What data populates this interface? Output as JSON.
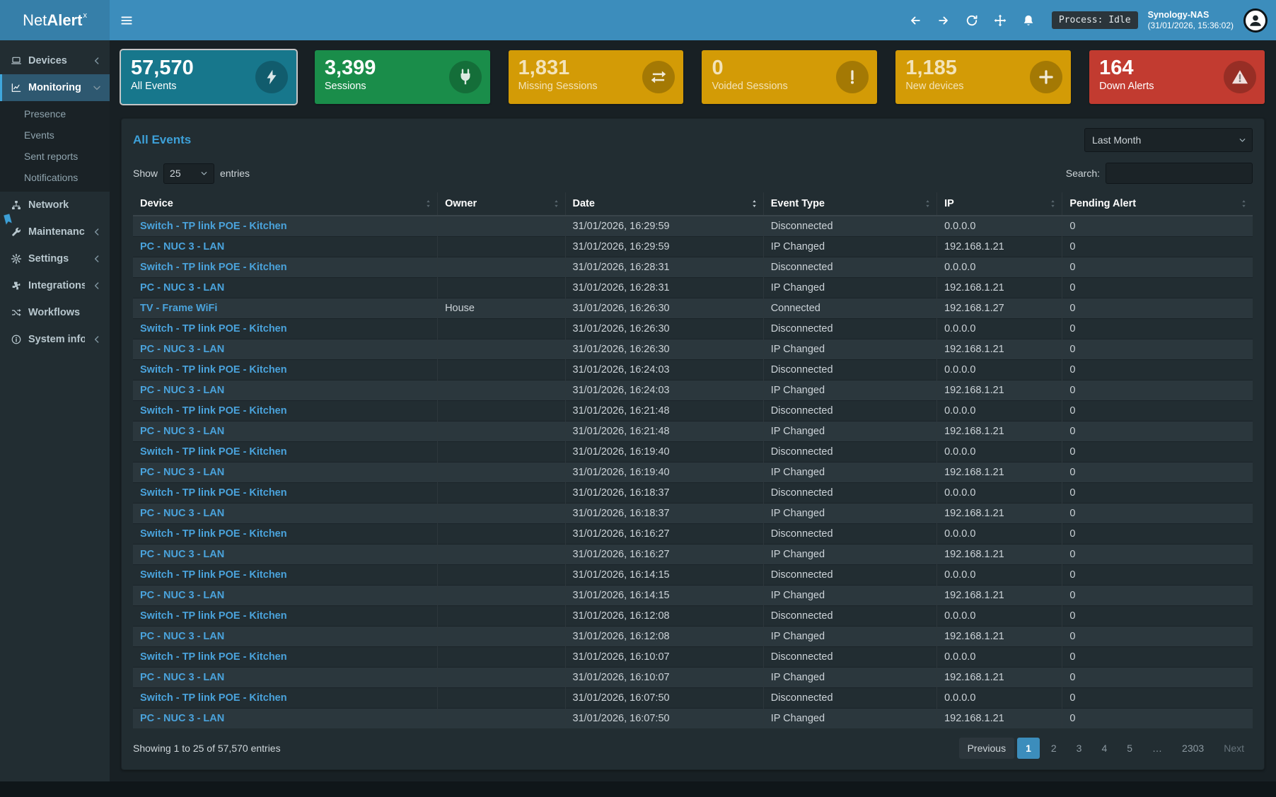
{
  "theme": {
    "accent": "#3c8dbc",
    "link": "#4aa3dc"
  },
  "app": {
    "brand": {
      "light": "Net",
      "bold": "Alert",
      "sup": "x"
    },
    "topbar": {
      "menu_icon": "hamburger-icon",
      "icons": [
        {
          "icon": "arrow-left-icon",
          "name": "nav-back-button"
        },
        {
          "icon": "arrow-right-icon",
          "name": "nav-forward-button"
        },
        {
          "icon": "refresh-icon",
          "name": "refresh-button"
        },
        {
          "icon": "move-icon",
          "name": "fullscreen-button"
        },
        {
          "icon": "bell-icon",
          "name": "notifications-button"
        }
      ],
      "process_badge": "Process: Idle",
      "host": "Synology-NAS",
      "host_time": "(31/01/2026, 15:36:02)",
      "avatar_icon": "person-icon"
    },
    "edge_icon": "tag-icon"
  },
  "sidebar": {
    "items": [
      {
        "label": "Devices",
        "icon": "laptop-icon",
        "chevron": "left"
      },
      {
        "label": "Monitoring",
        "icon": "chart-icon",
        "chevron": "down",
        "active": true,
        "submenu": [
          "Presence",
          "Events",
          "Sent reports",
          "Notifications"
        ]
      },
      {
        "label": "Network",
        "icon": "network-icon",
        "chevron": ""
      },
      {
        "label": "Maintenance",
        "icon": "wrench-icon",
        "chevron": "left"
      },
      {
        "label": "Settings",
        "icon": "gear-icon",
        "chevron": "left"
      },
      {
        "label": "Integrations",
        "icon": "puzzle-icon",
        "chevron": "left"
      },
      {
        "label": "Workflows",
        "icon": "shuffle-icon",
        "chevron": ""
      },
      {
        "label": "System info",
        "icon": "info-icon",
        "chevron": "left"
      }
    ]
  },
  "cards": [
    {
      "value": "57,570",
      "label": "All Events",
      "color": "#17778c",
      "icon": "bolt-icon",
      "selected": true
    },
    {
      "value": "3,399",
      "label": "Sessions",
      "color": "#1a8d4a",
      "icon": "plug-icon"
    },
    {
      "value": "1,831",
      "label": "Missing Sessions",
      "color": "#d39b06",
      "icon": "exchange-icon",
      "muted": true
    },
    {
      "value": "0",
      "label": "Voided Sessions",
      "color": "#d39b06",
      "icon": "exclamation-icon",
      "muted": true
    },
    {
      "value": "1,185",
      "label": "New devices",
      "color": "#d39b06",
      "icon": "plus-icon",
      "muted": true
    },
    {
      "value": "164",
      "label": "Down Alerts",
      "color": "#c23b30",
      "icon": "warning-icon"
    }
  ],
  "panel": {
    "title": "All Events",
    "period": {
      "selected": "Last Month"
    },
    "length": {
      "show_label": "Show",
      "value": "25",
      "entries_label": "entries"
    },
    "search_label": "Search:",
    "table": {
      "columns": [
        {
          "label": "Device"
        },
        {
          "label": "Owner"
        },
        {
          "label": "Date",
          "sorted": "desc"
        },
        {
          "label": "Event Type"
        },
        {
          "label": "IP"
        },
        {
          "label": "Pending Alert"
        }
      ],
      "rows": [
        {
          "device": "Switch - TP link POE - Kitchen",
          "owner": "",
          "date": "31/01/2026, 16:29:59",
          "type": "Disconnected",
          "ip": "0.0.0.0",
          "pending": "0"
        },
        {
          "device": "PC - NUC 3 - LAN",
          "owner": "",
          "date": "31/01/2026, 16:29:59",
          "type": "IP Changed",
          "ip": "192.168.1.21",
          "pending": "0"
        },
        {
          "device": "Switch - TP link POE - Kitchen",
          "owner": "",
          "date": "31/01/2026, 16:28:31",
          "type": "Disconnected",
          "ip": "0.0.0.0",
          "pending": "0"
        },
        {
          "device": "PC - NUC 3 - LAN",
          "owner": "",
          "date": "31/01/2026, 16:28:31",
          "type": "IP Changed",
          "ip": "192.168.1.21",
          "pending": "0"
        },
        {
          "device": "TV - Frame WiFi",
          "owner": "House",
          "date": "31/01/2026, 16:26:30",
          "type": "Connected",
          "ip": "192.168.1.27",
          "pending": "0"
        },
        {
          "device": "Switch - TP link POE - Kitchen",
          "owner": "",
          "date": "31/01/2026, 16:26:30",
          "type": "Disconnected",
          "ip": "0.0.0.0",
          "pending": "0"
        },
        {
          "device": "PC - NUC 3 - LAN",
          "owner": "",
          "date": "31/01/2026, 16:26:30",
          "type": "IP Changed",
          "ip": "192.168.1.21",
          "pending": "0"
        },
        {
          "device": "Switch - TP link POE - Kitchen",
          "owner": "",
          "date": "31/01/2026, 16:24:03",
          "type": "Disconnected",
          "ip": "0.0.0.0",
          "pending": "0"
        },
        {
          "device": "PC - NUC 3 - LAN",
          "owner": "",
          "date": "31/01/2026, 16:24:03",
          "type": "IP Changed",
          "ip": "192.168.1.21",
          "pending": "0"
        },
        {
          "device": "Switch - TP link POE - Kitchen",
          "owner": "",
          "date": "31/01/2026, 16:21:48",
          "type": "Disconnected",
          "ip": "0.0.0.0",
          "pending": "0"
        },
        {
          "device": "PC - NUC 3 - LAN",
          "owner": "",
          "date": "31/01/2026, 16:21:48",
          "type": "IP Changed",
          "ip": "192.168.1.21",
          "pending": "0"
        },
        {
          "device": "Switch - TP link POE - Kitchen",
          "owner": "",
          "date": "31/01/2026, 16:19:40",
          "type": "Disconnected",
          "ip": "0.0.0.0",
          "pending": "0"
        },
        {
          "device": "PC - NUC 3 - LAN",
          "owner": "",
          "date": "31/01/2026, 16:19:40",
          "type": "IP Changed",
          "ip": "192.168.1.21",
          "pending": "0"
        },
        {
          "device": "Switch - TP link POE - Kitchen",
          "owner": "",
          "date": "31/01/2026, 16:18:37",
          "type": "Disconnected",
          "ip": "0.0.0.0",
          "pending": "0"
        },
        {
          "device": "PC - NUC 3 - LAN",
          "owner": "",
          "date": "31/01/2026, 16:18:37",
          "type": "IP Changed",
          "ip": "192.168.1.21",
          "pending": "0"
        },
        {
          "device": "Switch - TP link POE - Kitchen",
          "owner": "",
          "date": "31/01/2026, 16:16:27",
          "type": "Disconnected",
          "ip": "0.0.0.0",
          "pending": "0"
        },
        {
          "device": "PC - NUC 3 - LAN",
          "owner": "",
          "date": "31/01/2026, 16:16:27",
          "type": "IP Changed",
          "ip": "192.168.1.21",
          "pending": "0"
        },
        {
          "device": "Switch - TP link POE - Kitchen",
          "owner": "",
          "date": "31/01/2026, 16:14:15",
          "type": "Disconnected",
          "ip": "0.0.0.0",
          "pending": "0"
        },
        {
          "device": "PC - NUC 3 - LAN",
          "owner": "",
          "date": "31/01/2026, 16:14:15",
          "type": "IP Changed",
          "ip": "192.168.1.21",
          "pending": "0"
        },
        {
          "device": "Switch - TP link POE - Kitchen",
          "owner": "",
          "date": "31/01/2026, 16:12:08",
          "type": "Disconnected",
          "ip": "0.0.0.0",
          "pending": "0"
        },
        {
          "device": "PC - NUC 3 - LAN",
          "owner": "",
          "date": "31/01/2026, 16:12:08",
          "type": "IP Changed",
          "ip": "192.168.1.21",
          "pending": "0"
        },
        {
          "device": "Switch - TP link POE - Kitchen",
          "owner": "",
          "date": "31/01/2026, 16:10:07",
          "type": "Disconnected",
          "ip": "0.0.0.0",
          "pending": "0"
        },
        {
          "device": "PC - NUC 3 - LAN",
          "owner": "",
          "date": "31/01/2026, 16:10:07",
          "type": "IP Changed",
          "ip": "192.168.1.21",
          "pending": "0"
        },
        {
          "device": "Switch - TP link POE - Kitchen",
          "owner": "",
          "date": "31/01/2026, 16:07:50",
          "type": "Disconnected",
          "ip": "0.0.0.0",
          "pending": "0"
        },
        {
          "device": "PC - NUC 3 - LAN",
          "owner": "",
          "date": "31/01/2026, 16:07:50",
          "type": "IP Changed",
          "ip": "192.168.1.21",
          "pending": "0"
        }
      ]
    },
    "footer": {
      "info": "Showing 1 to 25 of 57,570 entries",
      "pagination": [
        {
          "label": "Previous",
          "type": "prev"
        },
        {
          "label": "1",
          "type": "current"
        },
        {
          "label": "2"
        },
        {
          "label": "3"
        },
        {
          "label": "4"
        },
        {
          "label": "5"
        },
        {
          "label": "…",
          "type": "ellipsis"
        },
        {
          "label": "2303"
        },
        {
          "label": "Next",
          "type": "next"
        }
      ]
    }
  }
}
